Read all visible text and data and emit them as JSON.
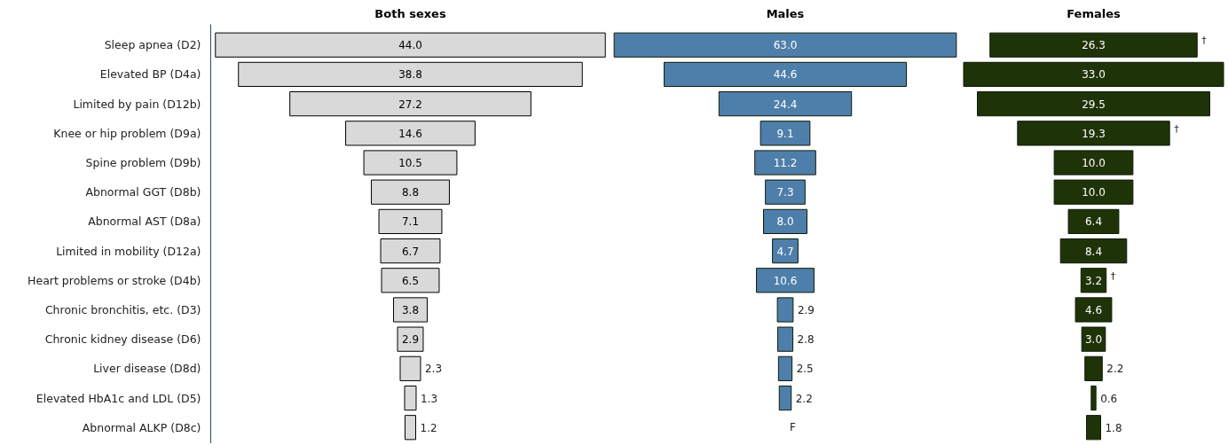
{
  "chart_data": [
    {
      "type": "other",
      "title": "Both sexes",
      "categories": [
        "Sleep apnea (D2)",
        "Elevated BP (D4a)",
        "Limited by pain (D12b)",
        "Knee or hip problem (D9a)",
        "Spine problem (D9b)",
        "Abnormal GGT (D8b)",
        "Abnormal AST (D8a)",
        "Limited in mobility (D12a)",
        "Heart problems or stroke (D4b)",
        "Chronic bronchitis, etc. (D3)",
        "Chronic kidney disease (D6)",
        "Liver disease (D8d)",
        "Elevated HbA1c and LDL (D5)",
        "Abnormal ALKP (D8c)"
      ],
      "color": "#d9d9d9",
      "values": [
        44.0,
        38.8,
        27.2,
        14.6,
        10.5,
        8.8,
        7.1,
        6.7,
        6.5,
        3.8,
        2.9,
        2.3,
        1.3,
        1.2
      ],
      "value_labels": [
        "44.0",
        "38.8",
        "27.2",
        "14.6",
        "10.5",
        "8.8",
        "7.1",
        "6.7",
        "6.5",
        "3.8",
        "2.9",
        "2.3",
        "1.3",
        "1.2"
      ]
    },
    {
      "type": "other",
      "title": "Males",
      "color": "#4e7fab",
      "values": [
        63.0,
        44.6,
        24.4,
        9.1,
        11.2,
        7.3,
        8.0,
        4.7,
        10.6,
        2.9,
        2.8,
        2.5,
        2.2,
        null
      ],
      "value_labels": [
        "63.0",
        "44.6",
        "24.4",
        "9.1",
        "11.2",
        "7.3",
        "8.0",
        "4.7",
        "10.6",
        "2.9",
        "2.8",
        "2.5",
        "2.2",
        "F"
      ]
    },
    {
      "type": "other",
      "title": "Females",
      "color": "#1f3308",
      "values": [
        26.3,
        33.0,
        29.5,
        19.3,
        10.0,
        10.0,
        6.4,
        8.4,
        3.2,
        4.6,
        3.0,
        2.2,
        0.6,
        1.8
      ],
      "value_labels": [
        "26.3",
        "33.0",
        "29.5",
        "19.3",
        "10.0",
        "10.0",
        "6.4",
        "8.4",
        "3.2",
        "4.6",
        "3.0",
        "2.2",
        "0.6",
        "1.8"
      ],
      "annotations": [
        {
          "text": "†",
          "y": "Sleep apnea (D2)"
        },
        {
          "text": "†",
          "y": "Knee or hip problem (D9a)"
        },
        {
          "text": "†",
          "y": "Heart problems or stroke (D4b)"
        }
      ]
    }
  ]
}
